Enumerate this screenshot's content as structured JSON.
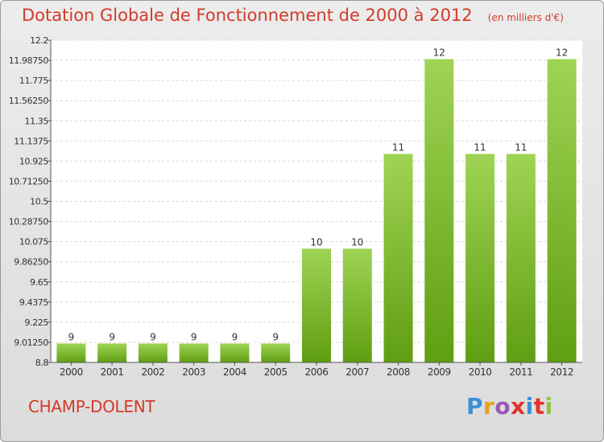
{
  "header": {
    "title": "Dotation Globale de Fonctionnement de 2000 à 2012",
    "subtitle": "(en milliers d'€)"
  },
  "footer": {
    "commune": "CHAMP-DOLENT",
    "logo_text": "Proxiti"
  },
  "colors": {
    "title": "#d43a2a",
    "bar_top": "#9fd454",
    "bar_bottom": "#5f9e12",
    "logo_letters": [
      "#3a8fd6",
      "#e8a020",
      "#9a55b8",
      "#e0342a",
      "#3a8fd6",
      "#e0342a",
      "#8cc63f"
    ]
  },
  "chart_data": {
    "type": "bar",
    "categories": [
      "2000",
      "2001",
      "2002",
      "2003",
      "2004",
      "2005",
      "2006",
      "2007",
      "2008",
      "2009",
      "2010",
      "2011",
      "2012"
    ],
    "values": [
      9,
      9,
      9,
      9,
      9,
      9,
      10,
      10,
      11,
      12,
      11,
      11,
      12
    ],
    "data_labels": [
      "9",
      "9",
      "9",
      "9",
      "9",
      "9",
      "10",
      "10",
      "11",
      "12",
      "11",
      "11",
      "12"
    ],
    "y_ticks": [
      "8.8",
      "9.01250",
      "9.225",
      "9.4375",
      "9.65",
      "9.86250",
      "10.075",
      "10.28750",
      "10.5",
      "10.71250",
      "10.925",
      "11.1375",
      "11.35",
      "11.56250",
      "11.775",
      "11.98750",
      "12.2"
    ],
    "ylim": [
      8.8,
      12.2
    ],
    "grid": true,
    "title": "Dotation Globale de Fonctionnement de 2000 à 2012",
    "xlabel": "",
    "ylabel": ""
  }
}
